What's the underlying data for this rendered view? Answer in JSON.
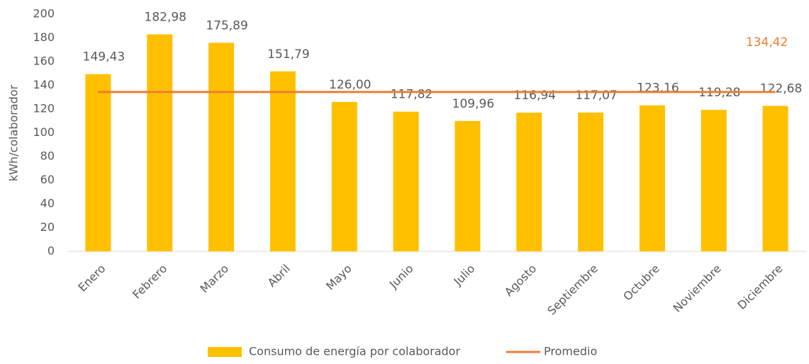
{
  "chart_data": {
    "type": "bar",
    "y_label": "kWh/colaborador",
    "categories": [
      "Enero",
      "Febrero",
      "Marzo",
      "Abril",
      "Mayo",
      "Junio",
      "Julio",
      "Agosto",
      "Septiembre",
      "Octubre",
      "Noviembre",
      "Diciembre"
    ],
    "series": [
      {
        "name": "Consumo de energía por colaborador",
        "type": "bar",
        "color": "#ffc000",
        "values": [
          149.43,
          182.98,
          175.89,
          151.79,
          126.0,
          117.82,
          109.96,
          116.94,
          117.07,
          123.16,
          119.28,
          122.68
        ],
        "value_labels": [
          "149,43",
          "182,98",
          "175,89",
          "151,79",
          "126,00",
          "117,82",
          "109,96",
          "116,94",
          "117,07",
          "123,16",
          "119,28",
          "122,68"
        ]
      },
      {
        "name": "Promedio",
        "type": "line",
        "color": "#ed7d31",
        "values": [
          134.42,
          134.42,
          134.42,
          134.42,
          134.42,
          134.42,
          134.42,
          134.42,
          134.42,
          134.42,
          134.42,
          134.42
        ],
        "value_labels": [
          null,
          null,
          null,
          null,
          null,
          null,
          null,
          null,
          null,
          null,
          null,
          "134,42"
        ]
      }
    ],
    "ylim": [
      0,
      200
    ],
    "yticks": [
      0,
      20,
      40,
      60,
      80,
      100,
      120,
      140,
      160,
      180,
      200
    ],
    "grid": false,
    "legend": "bottom"
  }
}
